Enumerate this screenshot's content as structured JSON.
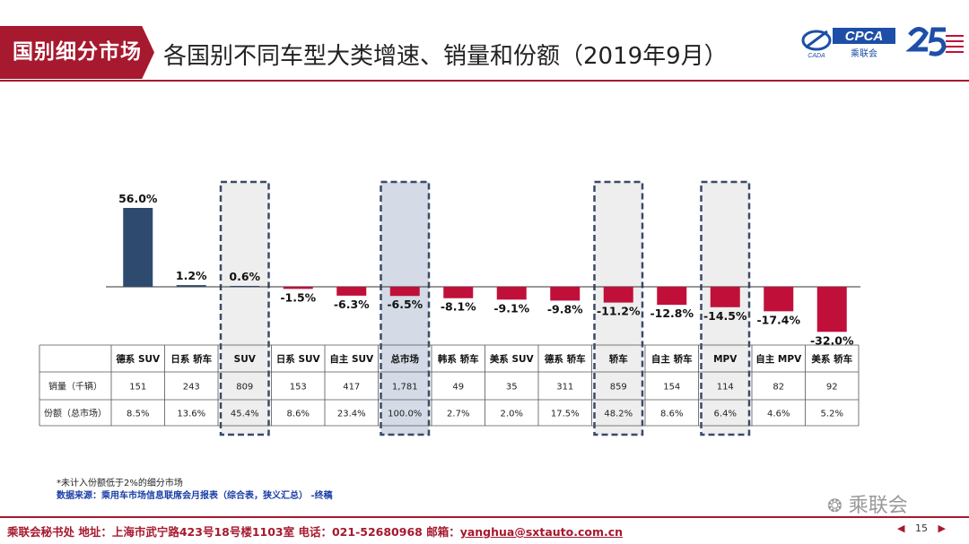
{
  "header": {
    "tag": "国别细分市场",
    "title": "各国别不同车型大类增速、销量和份额（2019年9月）",
    "logo_text": "CPCA",
    "logo_subtext": "乘联会",
    "logo_small": "CADA"
  },
  "chart_data": {
    "type": "bar",
    "categories": [
      "德系 SUV",
      "日系 轿车",
      "SUV",
      "日系 SUV",
      "自主 SUV",
      "总市场",
      "韩系 轿车",
      "美系 SUV",
      "德系 轿车",
      "轿车",
      "自主 轿车",
      "MPV",
      "自主 MPV",
      "美系 轿车"
    ],
    "values": [
      56.0,
      1.2,
      0.6,
      -1.5,
      -6.3,
      -6.5,
      -8.1,
      -9.1,
      -9.8,
      -11.2,
      -12.8,
      -14.5,
      -17.4,
      -32.0
    ],
    "value_labels": [
      "56.0%",
      "1.2%",
      "0.6%",
      "-1.5%",
      "-6.3%",
      "-6.5%",
      "-8.1%",
      "-9.1%",
      "-9.8%",
      "-11.2%",
      "-12.8%",
      "-14.5%",
      "-17.4%",
      "-32.0%"
    ],
    "highlighted": [
      "SUV",
      "总市场",
      "轿车",
      "MPV"
    ],
    "colors": {
      "positive": "#2e4a6e",
      "negative": "#c0103a",
      "highlight_fill": "#eeeeee",
      "total_fill": "#d4dbe6",
      "dash": "#3a4a68"
    },
    "table": {
      "rows": [
        {
          "label": "销量（千辆）",
          "values": [
            "151",
            "243",
            "809",
            "153",
            "417",
            "1,781",
            "49",
            "35",
            "311",
            "859",
            "154",
            "114",
            "82",
            "92"
          ]
        },
        {
          "label": "份额（总市场）",
          "values": [
            "8.5%",
            "13.6%",
            "45.4%",
            "8.6%",
            "23.4%",
            "100.0%",
            "2.7%",
            "2.0%",
            "17.5%",
            "48.2%",
            "8.6%",
            "6.4%",
            "4.6%",
            "5.2%"
          ]
        }
      ]
    },
    "grid": false,
    "legend": "none"
  },
  "notes": {
    "line1": "*未计入份额低于2%的细分市场",
    "line2": "数据来源：乘用车市场信息联席会月报表（综合表，狭义汇总）  -终稿"
  },
  "watermark": "乘联会",
  "footer": {
    "text": "乘联会秘书处   地址：上海市武宁路423号18号楼1103室  电话：021-52680968  邮箱：",
    "email": "yanghua@sxtauto.com.cn",
    "page": "15",
    "prev_icon": "triangle-left",
    "next_icon": "triangle-right"
  }
}
